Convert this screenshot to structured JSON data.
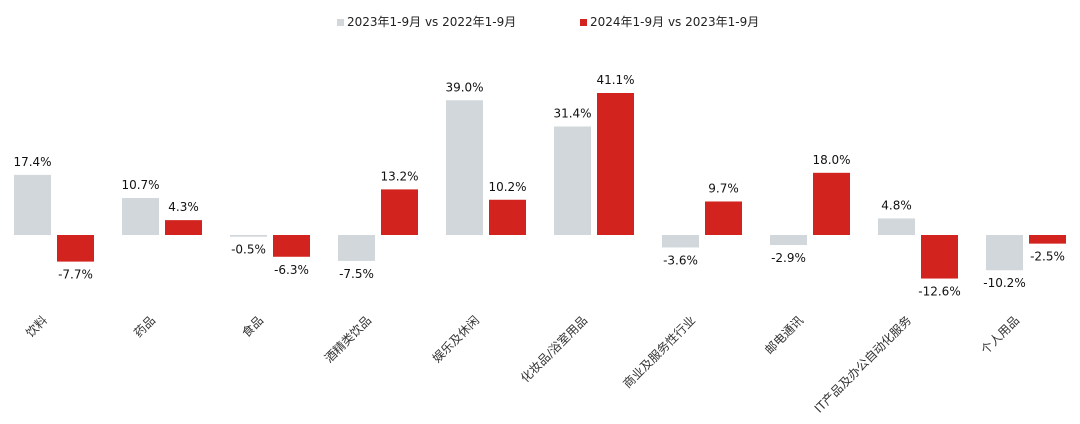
{
  "chart_data": {
    "type": "bar",
    "categories": [
      "饮料",
      "药品",
      "食品",
      "酒精类饮品",
      "娱乐及休闲",
      "化妆品/浴室用品",
      "商业及服务性行业",
      "邮电通讯",
      "IT产品及办公自动化服务",
      "个人用品"
    ],
    "series": [
      {
        "name": "2023年1-9月 vs 2022年1-9月",
        "color": "#d1d7da",
        "values": [
          17.4,
          10.7,
          -0.5,
          -7.5,
          39.0,
          31.4,
          -3.6,
          -2.9,
          4.8,
          -10.2
        ],
        "labels": [
          "17.4%",
          "10.7%",
          "-0.5%",
          "-7.5%",
          "39.0%",
          "31.4%",
          "-3.6%",
          "-2.9%",
          "4.8%",
          "-10.2%"
        ]
      },
      {
        "name": "2024年1-9月 vs 2023年1-9月",
        "color": "#d2231e",
        "values": [
          -7.7,
          4.3,
          -6.3,
          13.2,
          10.2,
          41.1,
          9.7,
          18.0,
          -12.6,
          -2.5
        ],
        "labels": [
          "-7.7%",
          "4.3%",
          "-6.3%",
          "13.2%",
          "10.2%",
          "41.1%",
          "9.7%",
          "18.0%",
          "-12.6%",
          "-2.5%"
        ]
      }
    ],
    "legend_position": "top-center",
    "grid": false,
    "value_unit": "%"
  }
}
